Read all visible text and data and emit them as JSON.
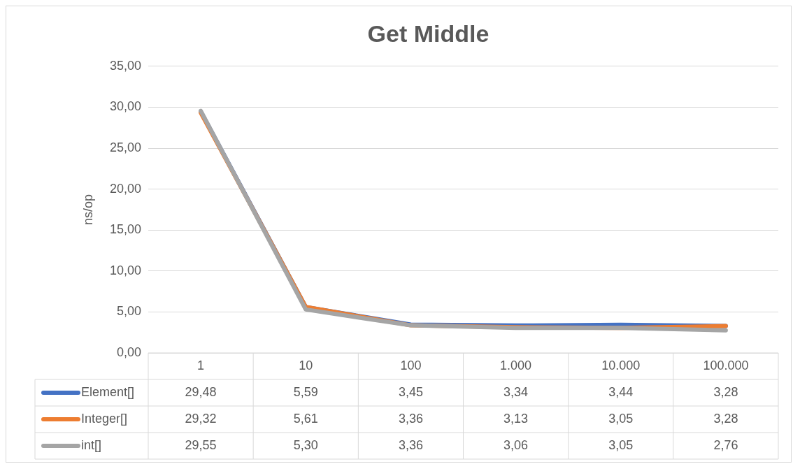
{
  "chart_data": {
    "type": "line",
    "title": "Get Middle",
    "ylabel": "ns/op",
    "categories": [
      "1",
      "10",
      "100",
      "1.000",
      "10.000",
      "100.000"
    ],
    "series": [
      {
        "name": "Element[]",
        "color": "#4472c4",
        "values": [
          29.48,
          5.59,
          3.45,
          3.34,
          3.44,
          3.28
        ],
        "value_labels": [
          "29,48",
          "5,59",
          "3,45",
          "3,34",
          "3,44",
          "3,28"
        ]
      },
      {
        "name": "Integer[]",
        "color": "#ed7d31",
        "values": [
          29.32,
          5.61,
          3.36,
          3.13,
          3.05,
          3.28
        ],
        "value_labels": [
          "29,32",
          "5,61",
          "3,36",
          "3,13",
          "3,05",
          "3,28"
        ]
      },
      {
        "name": "int[]",
        "color": "#a5a5a5",
        "values": [
          29.55,
          5.3,
          3.36,
          3.06,
          3.05,
          2.76
        ],
        "value_labels": [
          "29,55",
          "5,30",
          "3,36",
          "3,06",
          "3,05",
          "2,76"
        ]
      }
    ],
    "ylim": [
      0,
      35
    ],
    "yticks": [
      {
        "value": 0,
        "label": "0,00"
      },
      {
        "value": 5,
        "label": "5,00"
      },
      {
        "value": 10,
        "label": "10,00"
      },
      {
        "value": 15,
        "label": "15,00"
      },
      {
        "value": 20,
        "label": "20,00"
      },
      {
        "value": 25,
        "label": "25,00"
      },
      {
        "value": 30,
        "label": "30,00"
      },
      {
        "value": 35,
        "label": "35,00"
      }
    ],
    "grid": "y",
    "legend": "bottom",
    "marker": "none",
    "line_style": "solid"
  }
}
